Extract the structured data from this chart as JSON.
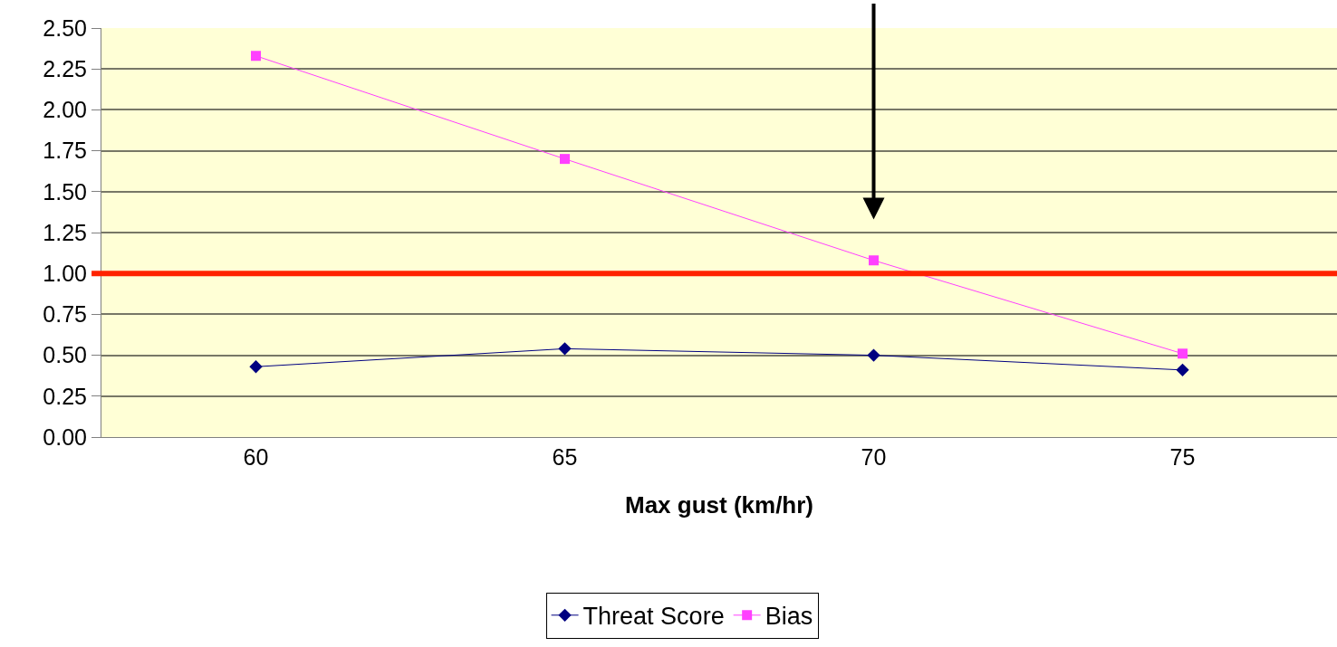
{
  "chart_data": {
    "type": "line",
    "xlabel": "Max gust (km/hr)",
    "categories": [
      "60",
      "65",
      "70",
      "75"
    ],
    "series": [
      {
        "name": "Threat Score",
        "color": "#000080",
        "marker": "diamond",
        "values": [
          0.43,
          0.54,
          0.5,
          0.41
        ]
      },
      {
        "name": "Bias",
        "color": "#ff40ff",
        "marker": "square",
        "values": [
          2.33,
          1.7,
          1.08,
          0.51
        ]
      }
    ],
    "ylim": [
      0,
      2.5
    ],
    "yticks": [
      {
        "value": 0,
        "label": "0.00"
      },
      {
        "value": 0.25,
        "label": "0.25"
      },
      {
        "value": 0.5,
        "label": "0.50"
      },
      {
        "value": 0.75,
        "label": "0.75"
      },
      {
        "value": 1,
        "label": "1.00"
      },
      {
        "value": 1.25,
        "label": "1.25"
      },
      {
        "value": 1.5,
        "label": "1.50"
      },
      {
        "value": 1.75,
        "label": "1.75"
      },
      {
        "value": 2,
        "label": "2.00"
      },
      {
        "value": 2.25,
        "label": "2.25"
      },
      {
        "value": 2.5,
        "label": "2.50"
      }
    ],
    "ref_lines": [
      {
        "axis": "y",
        "value": 1,
        "color": "#ff2200"
      }
    ],
    "grid": "y",
    "legend": "bottom",
    "line_style": "solid"
  }
}
